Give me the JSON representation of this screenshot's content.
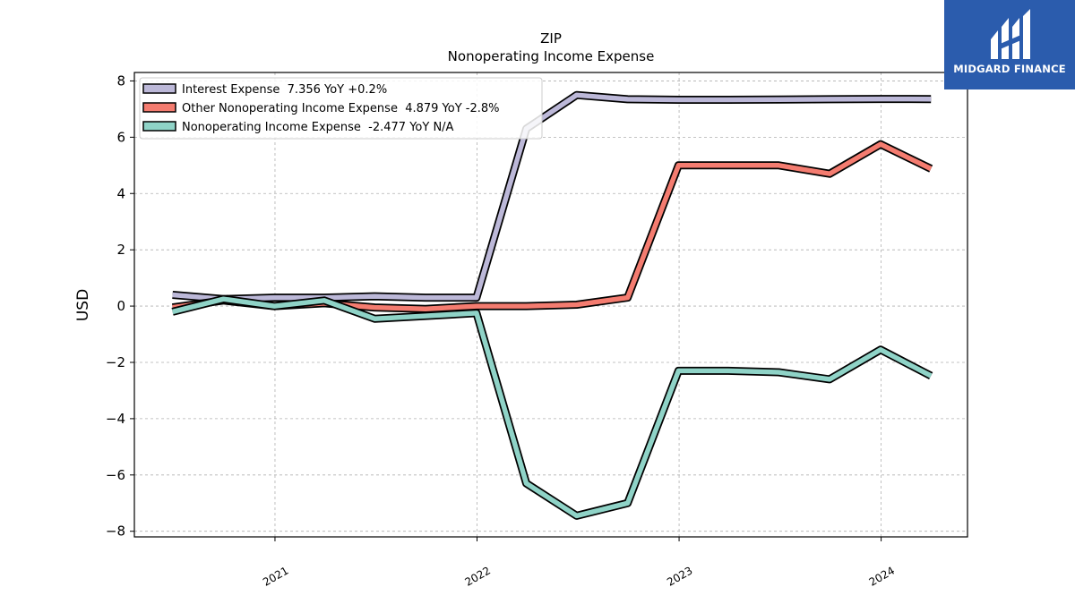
{
  "brand": {
    "name": "MIDGARD FINANCE",
    "bg_color": "#2b5cad"
  },
  "chart_data": {
    "type": "line",
    "title": "ZIP",
    "subtitle": "Nonoperating Income Expense",
    "xlabel": "",
    "ylabel": "USD",
    "ylim": [
      -8.2,
      8.3
    ],
    "yticks": [
      -8,
      -6,
      -4,
      -2,
      0,
      2,
      4,
      6,
      8
    ],
    "ytick_labels": [
      "−8",
      "−6",
      "−4",
      "−2",
      "0",
      "2",
      "4",
      "6",
      "8"
    ],
    "xlim": [
      "2020-04-22",
      "2024-06-05"
    ],
    "xticks": [
      "2021-01-01",
      "2022-01-01",
      "2023-01-01",
      "2024-01-01"
    ],
    "xtick_labels": [
      "2021",
      "2022",
      "2023",
      "2024"
    ],
    "grid": true,
    "legend_position": "top-left",
    "x": [
      "2020-06-30",
      "2020-09-30",
      "2020-12-31",
      "2021-03-31",
      "2021-06-30",
      "2021-09-30",
      "2021-12-31",
      "2022-03-31",
      "2022-06-30",
      "2022-09-30",
      "2022-12-31",
      "2023-03-31",
      "2023-06-30",
      "2023-09-30",
      "2023-12-31",
      "2024-03-31"
    ],
    "series": [
      {
        "name": "Interest Expense",
        "legend_label": "Interest Expense  7.356 YoY +0.2%",
        "color": "#bcb8d8",
        "values": [
          0.4,
          0.25,
          0.3,
          0.3,
          0.35,
          0.3,
          0.3,
          6.3,
          7.5,
          7.35,
          7.33,
          7.33,
          7.34,
          7.35,
          7.36,
          7.356
        ]
      },
      {
        "name": "Other Nonoperating Income Expense",
        "legend_label": "Other Nonoperating Income Expense  4.879 YoY -2.8%",
        "color": "#f47c70",
        "values": [
          -0.05,
          0.2,
          0.0,
          0.1,
          -0.05,
          -0.1,
          0.0,
          0.0,
          0.05,
          0.3,
          5.0,
          5.0,
          5.0,
          4.7,
          5.75,
          4.879
        ]
      },
      {
        "name": "Nonoperating Income Expense",
        "legend_label": "Nonoperating Income Expense  -2.477 YoY N/A",
        "color": "#8fd3c7",
        "values": [
          -0.2,
          0.25,
          0.0,
          0.2,
          -0.45,
          -0.35,
          -0.25,
          -6.3,
          -7.45,
          -7.0,
          -2.3,
          -2.3,
          -2.35,
          -2.6,
          -1.55,
          -2.477
        ]
      }
    ]
  }
}
